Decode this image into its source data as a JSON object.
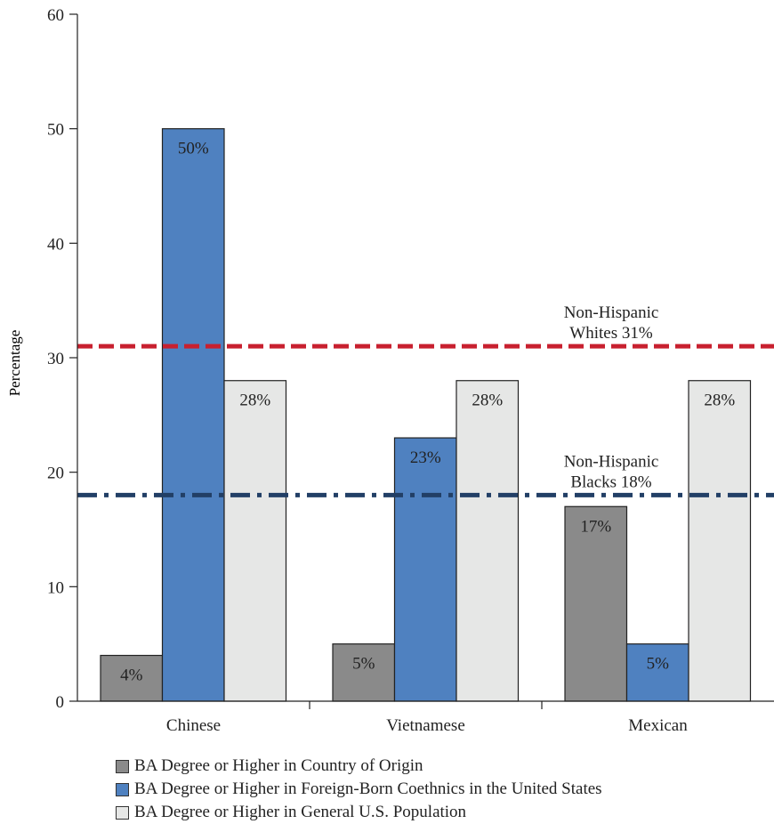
{
  "chart_data": {
    "type": "bar",
    "title": "",
    "xlabel": "",
    "ylabel": "Percentage",
    "ylim": [
      0,
      60
    ],
    "yticks": [
      0,
      10,
      20,
      30,
      40,
      50,
      60
    ],
    "categories": [
      "Chinese",
      "Vietnamese",
      "Mexican"
    ],
    "series": [
      {
        "name": "BA Degree or Higher in Country of Origin",
        "color": "#8a8a8a",
        "values": [
          4,
          5,
          17
        ],
        "labels": [
          "4%",
          "5%",
          "17%"
        ]
      },
      {
        "name": "BA Degree or Higher in Foreign-Born Coethnics in the United States",
        "color": "#4f81c0",
        "values": [
          50,
          23,
          5
        ],
        "labels": [
          "50%",
          "23%",
          "5%"
        ]
      },
      {
        "name": "BA Degree or Higher in General U.S. Population",
        "color": "#e6e7e6",
        "values": [
          28,
          28,
          28
        ],
        "labels": [
          "28%",
          "28%",
          "28%"
        ]
      }
    ],
    "reference_lines": [
      {
        "value": 31,
        "label_line1": "Non-Hispanic",
        "label_line2": "Whites 31%",
        "color": "#c8202f",
        "style": "dashed"
      },
      {
        "value": 18,
        "label_line1": "Non-Hispanic",
        "label_line2": "Blacks 18%",
        "color": "#223f66",
        "style": "dash-dot"
      }
    ],
    "legend_position": "bottom"
  }
}
